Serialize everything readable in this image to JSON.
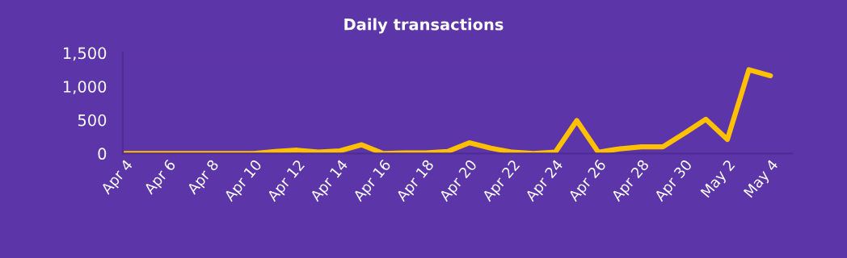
{
  "chart_data": {
    "type": "line",
    "title": "Daily transactions",
    "categories": [
      "Apr 4",
      null,
      "Apr 6",
      null,
      "Apr 8",
      null,
      "Apr 10",
      null,
      "Apr 12",
      null,
      "Apr 14",
      null,
      "Apr 16",
      null,
      "Apr 18",
      null,
      "Apr 20",
      null,
      "Apr 22",
      null,
      "Apr 24",
      null,
      "Apr 26",
      null,
      "Apr 28",
      null,
      "Apr 30",
      null,
      "May 2",
      null,
      "May 4"
    ],
    "series": [
      {
        "color": "#ffc000",
        "values": [
          0,
          0,
          0,
          0,
          0,
          0,
          0,
          30,
          50,
          20,
          40,
          130,
          0,
          10,
          10,
          30,
          160,
          80,
          20,
          0,
          20,
          490,
          20,
          70,
          100,
          100,
          300,
          510,
          210,
          1250,
          1160
        ]
      }
    ],
    "ylim": [
      0,
      1500
    ],
    "yticks": [
      0,
      {
        "value": 500,
        "label": "500"
      },
      {
        "value": 1000,
        "label": "1,000"
      },
      {
        "value": 1500,
        "label": "1,500"
      }
    ],
    "marker": "none",
    "line_style": "solid"
  }
}
